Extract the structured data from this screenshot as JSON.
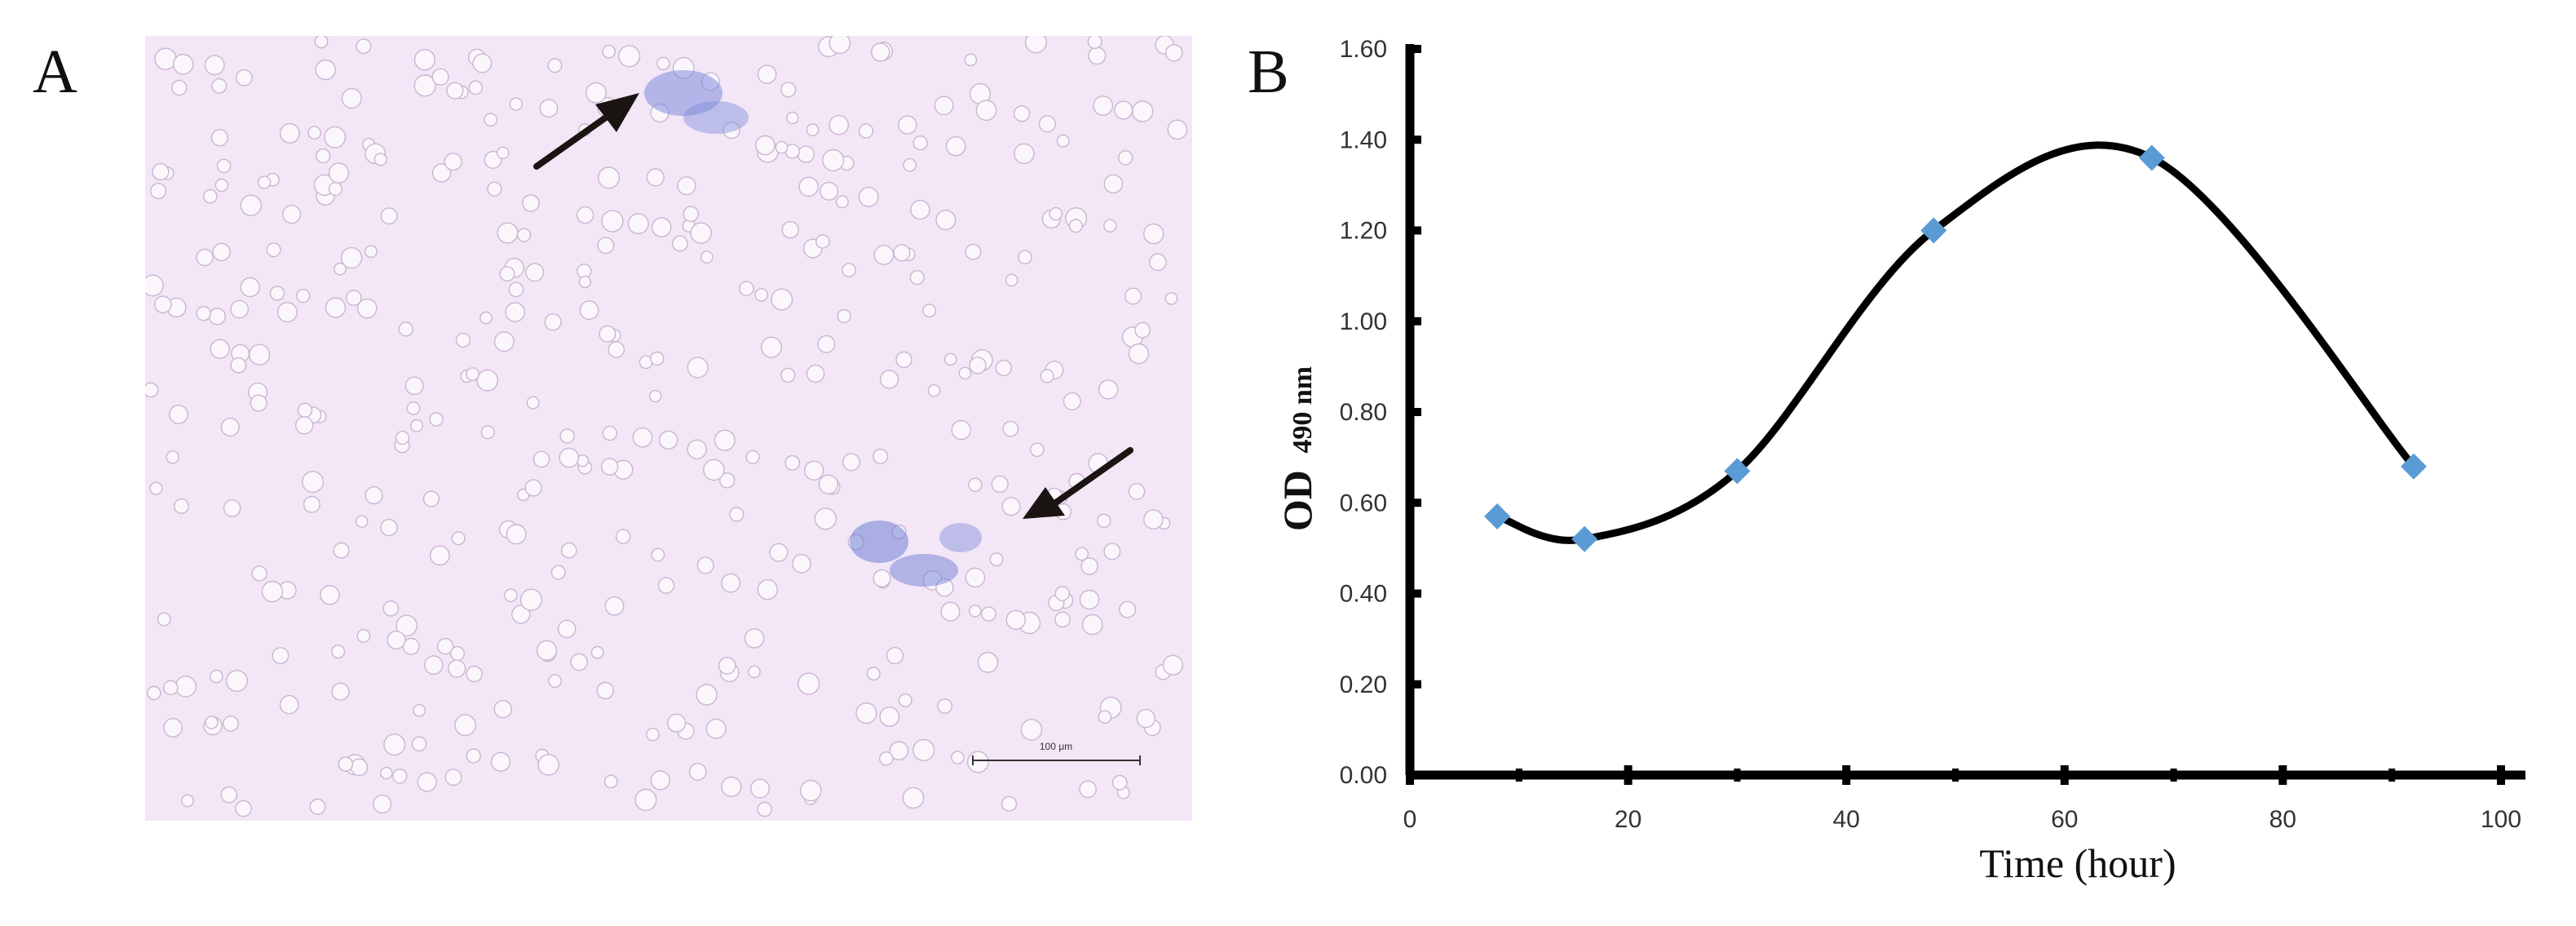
{
  "panels": {
    "a_label": "A",
    "b_label": "B"
  },
  "micrograph": {
    "scale_bar_label": "100 μm",
    "background_color": "#f3e6f6",
    "cell_color": "#ffffff",
    "stain_color": "#6f7fd6",
    "arrow_color": "#1a1412",
    "arrows": [
      {
        "name": "arrow-top"
      },
      {
        "name": "arrow-right"
      }
    ]
  },
  "chart_data": {
    "type": "line",
    "title": "",
    "xlabel": "Time (hour)",
    "ylabel_main": "OD",
    "ylabel_sub": "490 nm",
    "xlim": [
      0,
      100
    ],
    "ylim": [
      0,
      1.6
    ],
    "x_ticks": [
      "0",
      "20",
      "40",
      "60",
      "80",
      "100"
    ],
    "y_ticks": [
      "0.00",
      "0.20",
      "0.40",
      "0.60",
      "0.80",
      "1.00",
      "1.20",
      "1.40",
      "1.60"
    ],
    "smoothed": true,
    "marker": "diamond",
    "marker_color": "#5b9bd5",
    "line_color": "#000000",
    "series": [
      {
        "x": [
          8,
          16,
          30,
          48,
          68,
          92
        ],
        "values": [
          0.57,
          0.52,
          0.67,
          1.2,
          1.36,
          0.68
        ]
      }
    ]
  }
}
